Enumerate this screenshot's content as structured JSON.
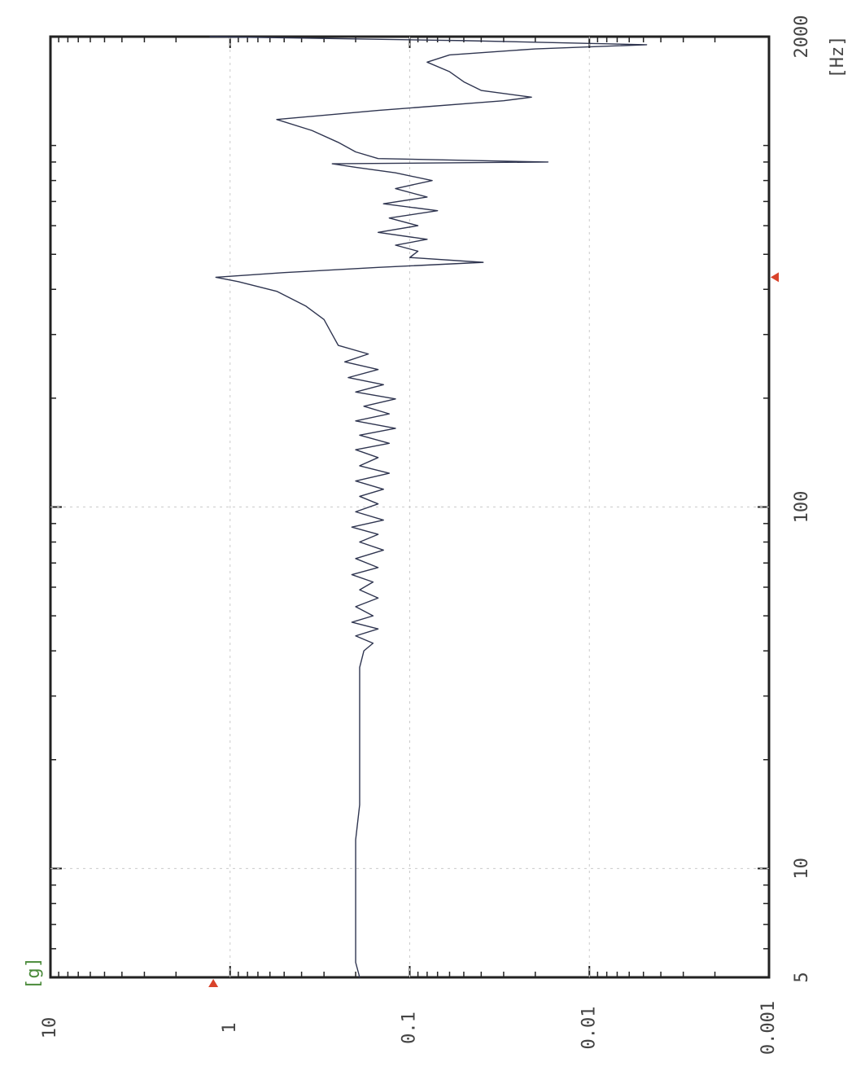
{
  "chart_data": {
    "type": "line",
    "x_label": "[Hz]",
    "y_label": "[g]",
    "xlog": true,
    "ylog": true,
    "grid": true,
    "color": "#2f3550",
    "xlim": [
      5,
      2000
    ],
    "xticks": [
      5,
      10,
      100,
      2000
    ],
    "x_minor_ticks": [
      6,
      7,
      8,
      9,
      20,
      30,
      40,
      50,
      60,
      70,
      80,
      90,
      200,
      300,
      400,
      500,
      600,
      700,
      800,
      900,
      1000
    ],
    "ylim": [
      0.001,
      10
    ],
    "yticks": [
      10,
      1,
      0.1,
      0.01,
      0.001
    ],
    "y_minor_ticks": [
      0.002,
      0.003,
      0.004,
      0.005,
      0.006,
      0.007,
      0.008,
      0.009,
      0.02,
      0.03,
      0.04,
      0.05,
      0.06,
      0.07,
      0.08,
      0.09,
      0.2,
      0.3,
      0.4,
      0.5,
      0.6,
      0.7,
      0.8,
      0.9,
      2,
      3,
      4,
      5,
      6,
      7,
      8,
      9
    ],
    "x_marker": 432,
    "y_marker": 1.24,
    "marker_color": "#d9432b",
    "x": [
      5,
      5.5,
      6,
      7,
      8,
      10,
      12,
      15,
      18,
      22,
      27,
      32,
      36,
      40,
      42,
      44,
      46,
      48,
      50,
      53,
      56,
      59,
      62,
      65,
      68,
      72,
      76,
      80,
      84,
      88,
      92,
      97,
      102,
      107,
      112,
      118,
      124,
      130,
      137,
      144,
      150,
      158,
      165,
      173,
      181,
      190,
      199,
      208,
      218,
      228,
      240,
      252,
      265,
      280,
      300,
      330,
      360,
      395,
      420,
      432,
      445,
      460,
      475,
      490,
      510,
      530,
      550,
      575,
      600,
      630,
      660,
      690,
      720,
      760,
      800,
      840,
      870,
      890,
      900,
      920,
      960,
      1020,
      1100,
      1180,
      1250,
      1330,
      1360,
      1420,
      1500,
      1600,
      1700,
      1780,
      1850,
      1900,
      1950,
      2000
    ],
    "values": [
      0.19,
      0.2,
      0.2,
      0.2,
      0.2,
      0.2,
      0.2,
      0.19,
      0.19,
      0.19,
      0.19,
      0.19,
      0.19,
      0.18,
      0.16,
      0.2,
      0.15,
      0.21,
      0.16,
      0.2,
      0.15,
      0.19,
      0.16,
      0.21,
      0.15,
      0.2,
      0.14,
      0.19,
      0.15,
      0.21,
      0.14,
      0.2,
      0.15,
      0.19,
      0.14,
      0.2,
      0.13,
      0.19,
      0.15,
      0.2,
      0.13,
      0.19,
      0.12,
      0.2,
      0.13,
      0.18,
      0.12,
      0.2,
      0.14,
      0.22,
      0.15,
      0.23,
      0.17,
      0.25,
      0.27,
      0.3,
      0.38,
      0.55,
      0.9,
      1.2,
      0.5,
      0.15,
      0.039,
      0.1,
      0.09,
      0.12,
      0.08,
      0.15,
      0.09,
      0.13,
      0.07,
      0.14,
      0.08,
      0.12,
      0.075,
      0.12,
      0.2,
      0.27,
      0.017,
      0.15,
      0.2,
      0.25,
      0.35,
      0.55,
      0.15,
      0.03,
      0.021,
      0.04,
      0.05,
      0.06,
      0.08,
      0.06,
      0.02,
      0.0048,
      0.05,
      1.3
    ]
  }
}
